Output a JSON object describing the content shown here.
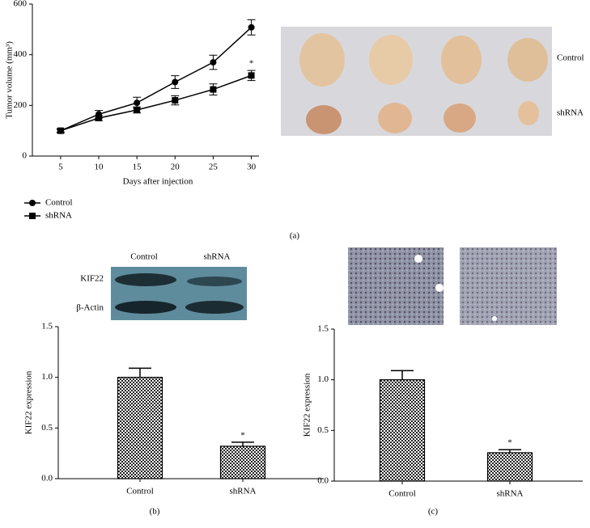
{
  "panels": [
    "(a)",
    "(b)",
    "(c)"
  ],
  "tumor_image": {
    "labels": [
      "Control",
      "shRNA"
    ]
  },
  "blot_image": {
    "columns": [
      "Control",
      "shRNA"
    ],
    "rows": [
      "KIF22",
      "β-Actin"
    ]
  },
  "chart_data": [
    {
      "type": "line",
      "x_label": "Days after injection",
      "y_label": "Tumor volume (mm³)",
      "x": [
        5,
        10,
        15,
        20,
        25,
        30
      ],
      "series": [
        {
          "name": "Control",
          "color": "#000000",
          "marker": "circle",
          "values": [
            100,
            165,
            210,
            292,
            370,
            508
          ],
          "errors": [
            8,
            15,
            22,
            25,
            28,
            30
          ]
        },
        {
          "name": "shRNA",
          "color": "#000000",
          "marker": "square",
          "values": [
            100,
            150,
            182,
            220,
            263,
            318
          ],
          "errors": [
            5,
            10,
            12,
            18,
            22,
            20
          ]
        }
      ],
      "xlim": [
        1.3,
        31
      ],
      "xticks": [
        5,
        10,
        15,
        20,
        25,
        30
      ],
      "ylim": [
        0,
        600
      ],
      "yticks": [
        0,
        200,
        400,
        600
      ],
      "legend": "below",
      "annotations": [
        {
          "text": "*",
          "x": 30,
          "series": "shRNA"
        }
      ]
    },
    {
      "type": "bar",
      "y_label": "KIF22 expression",
      "categories": [
        "Control",
        "shRNA"
      ],
      "values": [
        1.0,
        0.32
      ],
      "errors": [
        0.09,
        0.04
      ],
      "color": "#000000",
      "ylim": [
        0,
        1.5
      ],
      "yticks": [
        {
          "value": 0,
          "label": "0.0"
        },
        0.5,
        {
          "value": 1,
          "label": "1.0"
        },
        1.5
      ],
      "annotations": [
        {
          "text": "*",
          "category": "shRNA"
        }
      ]
    },
    {
      "type": "bar",
      "y_label": "KIF22 expression",
      "categories": [
        "Control",
        "shRNA"
      ],
      "values": [
        1.0,
        0.28
      ],
      "errors": [
        0.09,
        0.03
      ],
      "color": "#000000",
      "ylim": [
        0,
        1.5
      ],
      "yticks": [
        {
          "value": 0,
          "label": "0.0"
        },
        0.5,
        {
          "value": 1,
          "label": "1.0"
        },
        1.5
      ],
      "annotations": [
        {
          "text": "*",
          "category": "shRNA"
        }
      ]
    }
  ]
}
